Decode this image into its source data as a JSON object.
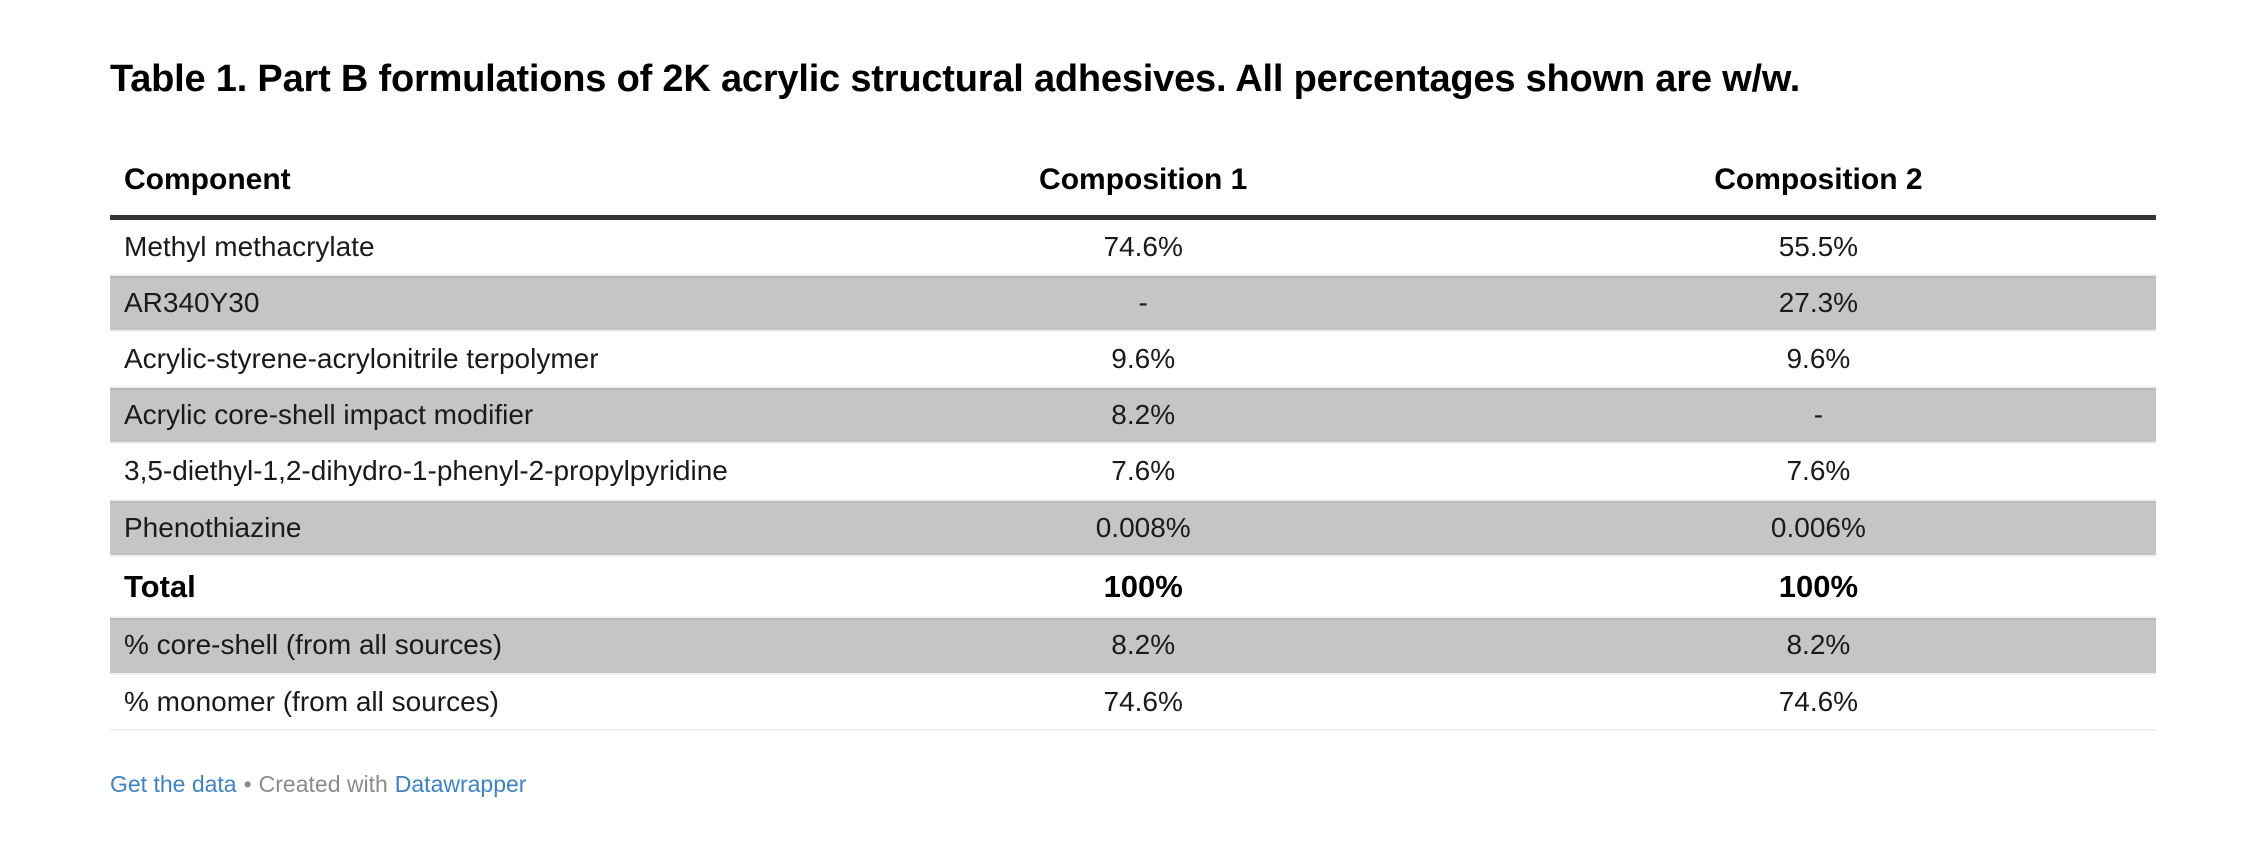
{
  "title": "Table 1. Part B formulations of 2K acrylic structural adhesives. All percentages shown are w/w.",
  "chart_data": {
    "type": "table",
    "title": "Table 1. Part B formulations of 2K acrylic structural adhesives. All percentages shown are w/w.",
    "columns": [
      "Component",
      "Composition 1",
      "Composition 2"
    ],
    "rows": [
      {
        "cells": [
          "Methyl methacrylate",
          "74.6%",
          "55.5%"
        ],
        "shaded": false,
        "emphasis": false
      },
      {
        "cells": [
          "AR340Y30",
          "-",
          "27.3%"
        ],
        "shaded": true,
        "emphasis": false
      },
      {
        "cells": [
          "Acrylic-styrene-acrylonitrile terpolymer",
          "9.6%",
          "9.6%"
        ],
        "shaded": false,
        "emphasis": false
      },
      {
        "cells": [
          "Acrylic core-shell impact modifier",
          "8.2%",
          "-"
        ],
        "shaded": true,
        "emphasis": false
      },
      {
        "cells": [
          "3,5-diethyl-1,2-dihydro-1-phenyl-2-propylpyridine",
          "7.6%",
          "7.6%"
        ],
        "shaded": false,
        "emphasis": false
      },
      {
        "cells": [
          "Phenothiazine",
          "0.008%",
          "0.006%"
        ],
        "shaded": true,
        "emphasis": false
      },
      {
        "cells": [
          "Total",
          "100%",
          "100%"
        ],
        "shaded": false,
        "emphasis": true
      },
      {
        "cells": [
          "% core-shell (from all sources)",
          "8.2%",
          "8.2%"
        ],
        "shaded": true,
        "emphasis": false
      },
      {
        "cells": [
          "% monomer (from all sources)",
          "74.6%",
          "74.6%"
        ],
        "shaded": false,
        "emphasis": false
      }
    ],
    "layout_hints": {
      "striped_rows": true,
      "stripe_color": "#c5c5c5",
      "header_rule_color": "#333333",
      "numeric_alignment": "center"
    }
  },
  "footer": {
    "get_data_label": "Get the data",
    "separator": "•",
    "created_with_label": "Created with",
    "brand_label": "Datawrapper"
  },
  "colors": {
    "link_blue": "#3f82c4",
    "footer_gray": "#8b8b8b",
    "stripe_gray": "#c5c5c5",
    "header_rule": "#333333",
    "text": "#1a1a1a"
  }
}
